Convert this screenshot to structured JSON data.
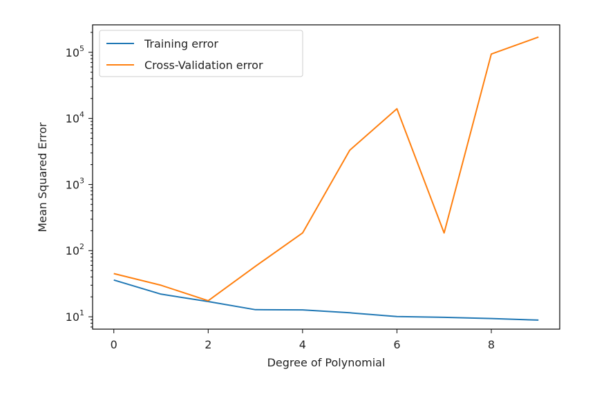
{
  "chart_data": {
    "type": "line",
    "title": "",
    "xlabel": "Degree of Polynomial",
    "ylabel": "Mean Squared Error",
    "yscale": "log",
    "xlim": [
      -0.45,
      9.45
    ],
    "ylim": [
      6.5,
      260000
    ],
    "x_ticks": [
      0,
      2,
      4,
      6,
      8
    ],
    "y_ticks": [
      {
        "value": 10,
        "base": "10",
        "exp": "1"
      },
      {
        "value": 100,
        "base": "10",
        "exp": "2"
      },
      {
        "value": 1000,
        "base": "10",
        "exp": "3"
      },
      {
        "value": 10000,
        "base": "10",
        "exp": "4"
      },
      {
        "value": 100000,
        "base": "10",
        "exp": "5"
      }
    ],
    "grid": false,
    "legend_position": "top-left",
    "x": [
      0,
      1,
      2,
      3,
      4,
      5,
      6,
      7,
      8,
      9
    ],
    "series": [
      {
        "name": "Training error",
        "color": "#1f77b4",
        "values": [
          36,
          22,
          17,
          12.8,
          12.7,
          11.5,
          10.1,
          9.8,
          9.4,
          8.9
        ]
      },
      {
        "name": "Cross-Validation error",
        "color": "#ff7f0e",
        "values": [
          45,
          30,
          17.5,
          58,
          185,
          3300,
          14000,
          185,
          94000,
          170000
        ]
      }
    ]
  }
}
